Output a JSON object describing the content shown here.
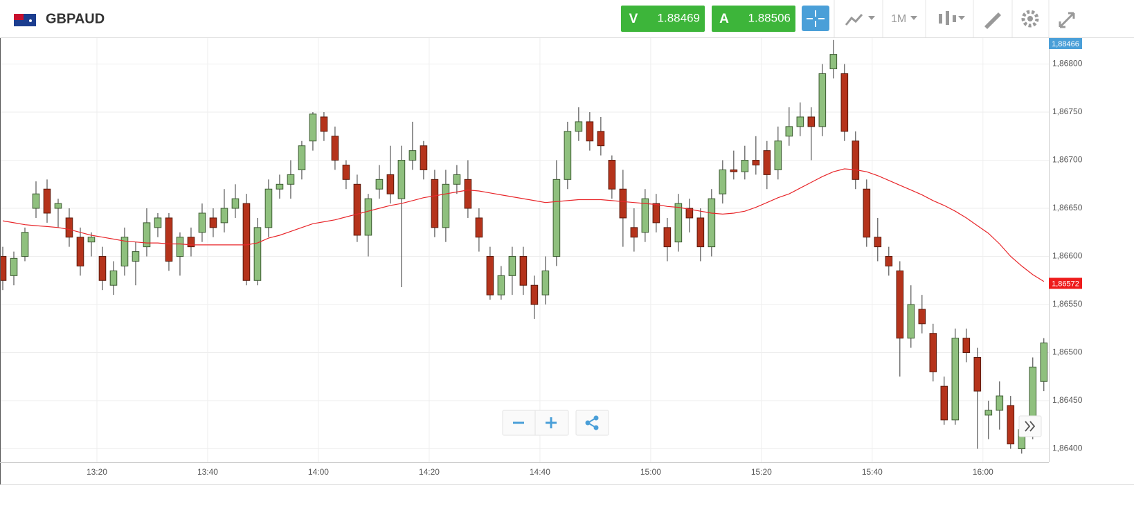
{
  "header": {
    "symbol": "GBPAUD",
    "sell": {
      "label": "V",
      "price": "1.88469"
    },
    "buy": {
      "label": "A",
      "price": "1.88506"
    },
    "timeframe": "1M"
  },
  "chart_data": {
    "type": "candlestick",
    "xlim": [
      782.5,
      971.9
    ],
    "xticks": [
      {
        "value": 800,
        "label": "13:20"
      },
      {
        "value": 820,
        "label": "13:40"
      },
      {
        "value": 840,
        "label": "14:00"
      },
      {
        "value": 860,
        "label": "14:20"
      },
      {
        "value": 880,
        "label": "14:40"
      },
      {
        "value": 900,
        "label": "15:00"
      },
      {
        "value": 920,
        "label": "15:20"
      },
      {
        "value": 940,
        "label": "15:40"
      },
      {
        "value": 960,
        "label": "16:00"
      }
    ],
    "ylim": [
      1.86386,
      1.86827
    ],
    "yticks": [
      {
        "value": 1.864,
        "label": "1,86400"
      },
      {
        "value": 1.8645,
        "label": "1,86450"
      },
      {
        "value": 1.865,
        "label": "1,86500"
      },
      {
        "value": 1.8655,
        "label": "1,86550"
      },
      {
        "value": 1.866,
        "label": "1,86600"
      },
      {
        "value": 1.8665,
        "label": "1,86650"
      },
      {
        "value": 1.867,
        "label": "1,86700"
      },
      {
        "value": 1.8675,
        "label": "1,86750"
      },
      {
        "value": 1.868,
        "label": "1,86800"
      }
    ],
    "grid": true,
    "up_color": "#8fc07e",
    "down_color": "#b5331b",
    "x": [
      783,
      785,
      787,
      789,
      791,
      793,
      795,
      797,
      799,
      801,
      803,
      805,
      807,
      809,
      811,
      813,
      815,
      817,
      819,
      821,
      823,
      825,
      827,
      829,
      831,
      833,
      835,
      837,
      839,
      841,
      843,
      845,
      847,
      849,
      851,
      853,
      855,
      857,
      859,
      861,
      863,
      865,
      867,
      869,
      871,
      873,
      875,
      877,
      879,
      881,
      883,
      885,
      887,
      889,
      891,
      893,
      895,
      897,
      899,
      901,
      903,
      905,
      907,
      909,
      911,
      913,
      915,
      917,
      919,
      921,
      923,
      925,
      927,
      929,
      931,
      933,
      935,
      937,
      939,
      941,
      943,
      945,
      947,
      949,
      951,
      953,
      955,
      957,
      959,
      961,
      963,
      965,
      967,
      969,
      971
    ],
    "candles": {
      "open": [
        1.866,
        1.8658,
        1.866,
        1.8665,
        1.8667,
        1.8665,
        1.8664,
        1.8662,
        1.86615,
        1.866,
        1.8657,
        1.8659,
        1.86595,
        1.8661,
        1.8663,
        1.8664,
        1.866,
        1.8662,
        1.86625,
        1.8664,
        1.86635,
        1.8665,
        1.86655,
        1.86575,
        1.8663,
        1.8667,
        1.86675,
        1.8669,
        1.8672,
        1.86745,
        1.86725,
        1.86695,
        1.86675,
        1.86622,
        1.8667,
        1.86685,
        1.8666,
        1.867,
        1.86715,
        1.8668,
        1.8663,
        1.86675,
        1.8668,
        1.8664,
        1.866,
        1.8656,
        1.8658,
        1.866,
        1.8657,
        1.8656,
        1.866,
        1.8668,
        1.8673,
        1.8674,
        1.8673,
        1.867,
        1.8667,
        1.8663,
        1.86625,
        1.86655,
        1.8663,
        1.86615,
        1.8665,
        1.8664,
        1.8661,
        1.86665,
        1.8669,
        1.86688,
        1.867,
        1.8671,
        1.8669,
        1.86725,
        1.86735,
        1.86745,
        1.86735,
        1.86795,
        1.8679,
        1.8672,
        1.8667,
        1.8662,
        1.866,
        1.86585,
        1.86515,
        1.86545,
        1.8652,
        1.86465,
        1.8643,
        1.86515,
        1.86495,
        1.86435,
        1.8644,
        1.86445,
        1.864,
        1.8642,
        1.8647
      ],
      "high": [
        1.8661,
        1.86605,
        1.8663,
        1.86678,
        1.8668,
        1.8666,
        1.8665,
        1.8663,
        1.86625,
        1.8661,
        1.86595,
        1.8663,
        1.86615,
        1.8665,
        1.86645,
        1.86645,
        1.86625,
        1.8663,
        1.86655,
        1.8665,
        1.8667,
        1.86675,
        1.86665,
        1.8664,
        1.8668,
        1.86685,
        1.867,
        1.8672,
        1.8675,
        1.8675,
        1.86735,
        1.867,
        1.86685,
        1.86665,
        1.86695,
        1.86715,
        1.86715,
        1.8674,
        1.8672,
        1.8669,
        1.8669,
        1.86695,
        1.867,
        1.8665,
        1.8661,
        1.8659,
        1.8661,
        1.8661,
        1.8658,
        1.866,
        1.867,
        1.8674,
        1.86755,
        1.8675,
        1.86745,
        1.86705,
        1.8669,
        1.8665,
        1.8667,
        1.86665,
        1.8664,
        1.86665,
        1.8666,
        1.8665,
        1.8667,
        1.867,
        1.8671,
        1.86715,
        1.86725,
        1.8672,
        1.86735,
        1.86755,
        1.8676,
        1.86755,
        1.868,
        1.86825,
        1.868,
        1.8673,
        1.8668,
        1.8664,
        1.8661,
        1.86595,
        1.8657,
        1.8656,
        1.8653,
        1.86475,
        1.86525,
        1.86525,
        1.86505,
        1.8645,
        1.8647,
        1.86455,
        1.86425,
        1.86495,
        1.86515
      ],
      "low": [
        1.86565,
        1.8657,
        1.86595,
        1.8664,
        1.86635,
        1.8663,
        1.8661,
        1.8658,
        1.866,
        1.86565,
        1.8656,
        1.8658,
        1.8657,
        1.866,
        1.8662,
        1.86585,
        1.8658,
        1.866,
        1.86615,
        1.8662,
        1.86625,
        1.8664,
        1.8657,
        1.8657,
        1.8662,
        1.8666,
        1.8666,
        1.8668,
        1.8671,
        1.8672,
        1.8669,
        1.8667,
        1.86615,
        1.866,
        1.8666,
        1.86655,
        1.86568,
        1.8669,
        1.8668,
        1.8662,
        1.86615,
        1.86665,
        1.8664,
        1.86605,
        1.86555,
        1.86555,
        1.8656,
        1.8656,
        1.86535,
        1.8655,
        1.8659,
        1.8667,
        1.8672,
        1.8671,
        1.86705,
        1.8666,
        1.8661,
        1.86605,
        1.86615,
        1.86625,
        1.86595,
        1.86605,
        1.86625,
        1.86595,
        1.866,
        1.86655,
        1.8668,
        1.8668,
        1.86685,
        1.8667,
        1.8668,
        1.86715,
        1.86725,
        1.867,
        1.86725,
        1.86785,
        1.8672,
        1.8667,
        1.8661,
        1.86595,
        1.8658,
        1.86475,
        1.86505,
        1.8652,
        1.8647,
        1.86425,
        1.86425,
        1.8649,
        1.864,
        1.8641,
        1.8642,
        1.864,
        1.86395,
        1.8641,
        1.8646
      ],
      "close": [
        1.86575,
        1.86598,
        1.86625,
        1.86665,
        1.86645,
        1.86655,
        1.8662,
        1.8659,
        1.8662,
        1.86575,
        1.86585,
        1.8662,
        1.86605,
        1.86635,
        1.8664,
        1.86595,
        1.8662,
        1.8661,
        1.86645,
        1.8663,
        1.8665,
        1.8666,
        1.86575,
        1.8663,
        1.8667,
        1.86675,
        1.86685,
        1.86715,
        1.86748,
        1.8673,
        1.867,
        1.8668,
        1.86622,
        1.8666,
        1.8668,
        1.86665,
        1.867,
        1.8671,
        1.8669,
        1.8663,
        1.86675,
        1.86685,
        1.8665,
        1.8662,
        1.8656,
        1.8658,
        1.866,
        1.8657,
        1.8655,
        1.86585,
        1.8668,
        1.8673,
        1.8674,
        1.8672,
        1.86715,
        1.8667,
        1.8664,
        1.8662,
        1.8666,
        1.86635,
        1.8661,
        1.86655,
        1.8664,
        1.8661,
        1.8666,
        1.8669,
        1.86688,
        1.867,
        1.86695,
        1.86685,
        1.8672,
        1.86735,
        1.86745,
        1.86735,
        1.8679,
        1.8681,
        1.8673,
        1.8668,
        1.8662,
        1.8661,
        1.8659,
        1.86515,
        1.8655,
        1.8653,
        1.8648,
        1.8643,
        1.86515,
        1.865,
        1.8646,
        1.8644,
        1.86455,
        1.86405,
        1.8642,
        1.86485,
        1.8651
      ]
    },
    "moving_average": {
      "color": "#e8262a",
      "values": [
        1.86637,
        1.86635,
        1.86633,
        1.86632,
        1.86631,
        1.8663,
        1.86628,
        1.86625,
        1.86622,
        1.8662,
        1.86618,
        1.86616,
        1.86615,
        1.86614,
        1.86614,
        1.86613,
        1.86613,
        1.86612,
        1.86612,
        1.86612,
        1.86612,
        1.86612,
        1.86612,
        1.86614,
        1.86619,
        1.86622,
        1.86626,
        1.8663,
        1.86634,
        1.86636,
        1.86638,
        1.86641,
        1.86644,
        1.86647,
        1.8665,
        1.86653,
        1.86655,
        1.86658,
        1.86661,
        1.86663,
        1.86665,
        1.86667,
        1.86669,
        1.86668,
        1.86666,
        1.86664,
        1.86662,
        1.8666,
        1.86658,
        1.86656,
        1.86657,
        1.86658,
        1.86659,
        1.86659,
        1.86659,
        1.86658,
        1.86657,
        1.86656,
        1.86655,
        1.86654,
        1.86652,
        1.86651,
        1.86649,
        1.86647,
        1.86645,
        1.86644,
        1.86645,
        1.86647,
        1.86651,
        1.86656,
        1.86661,
        1.86665,
        1.86671,
        1.86677,
        1.86683,
        1.86688,
        1.86691,
        1.8669,
        1.86688,
        1.86684,
        1.86679,
        1.86674,
        1.86669,
        1.86664,
        1.86658,
        1.86653,
        1.86647,
        1.8664,
        1.86632,
        1.86624,
        1.86613,
        1.866,
        1.8659,
        1.86581,
        1.86574
      ]
    },
    "price_tags": [
      {
        "value": 1.88466,
        "label": "1,88466",
        "color": "#4a9fd8"
      },
      {
        "value": 1.86572,
        "label": "1,86572",
        "color": "#ee1c1c"
      }
    ]
  }
}
